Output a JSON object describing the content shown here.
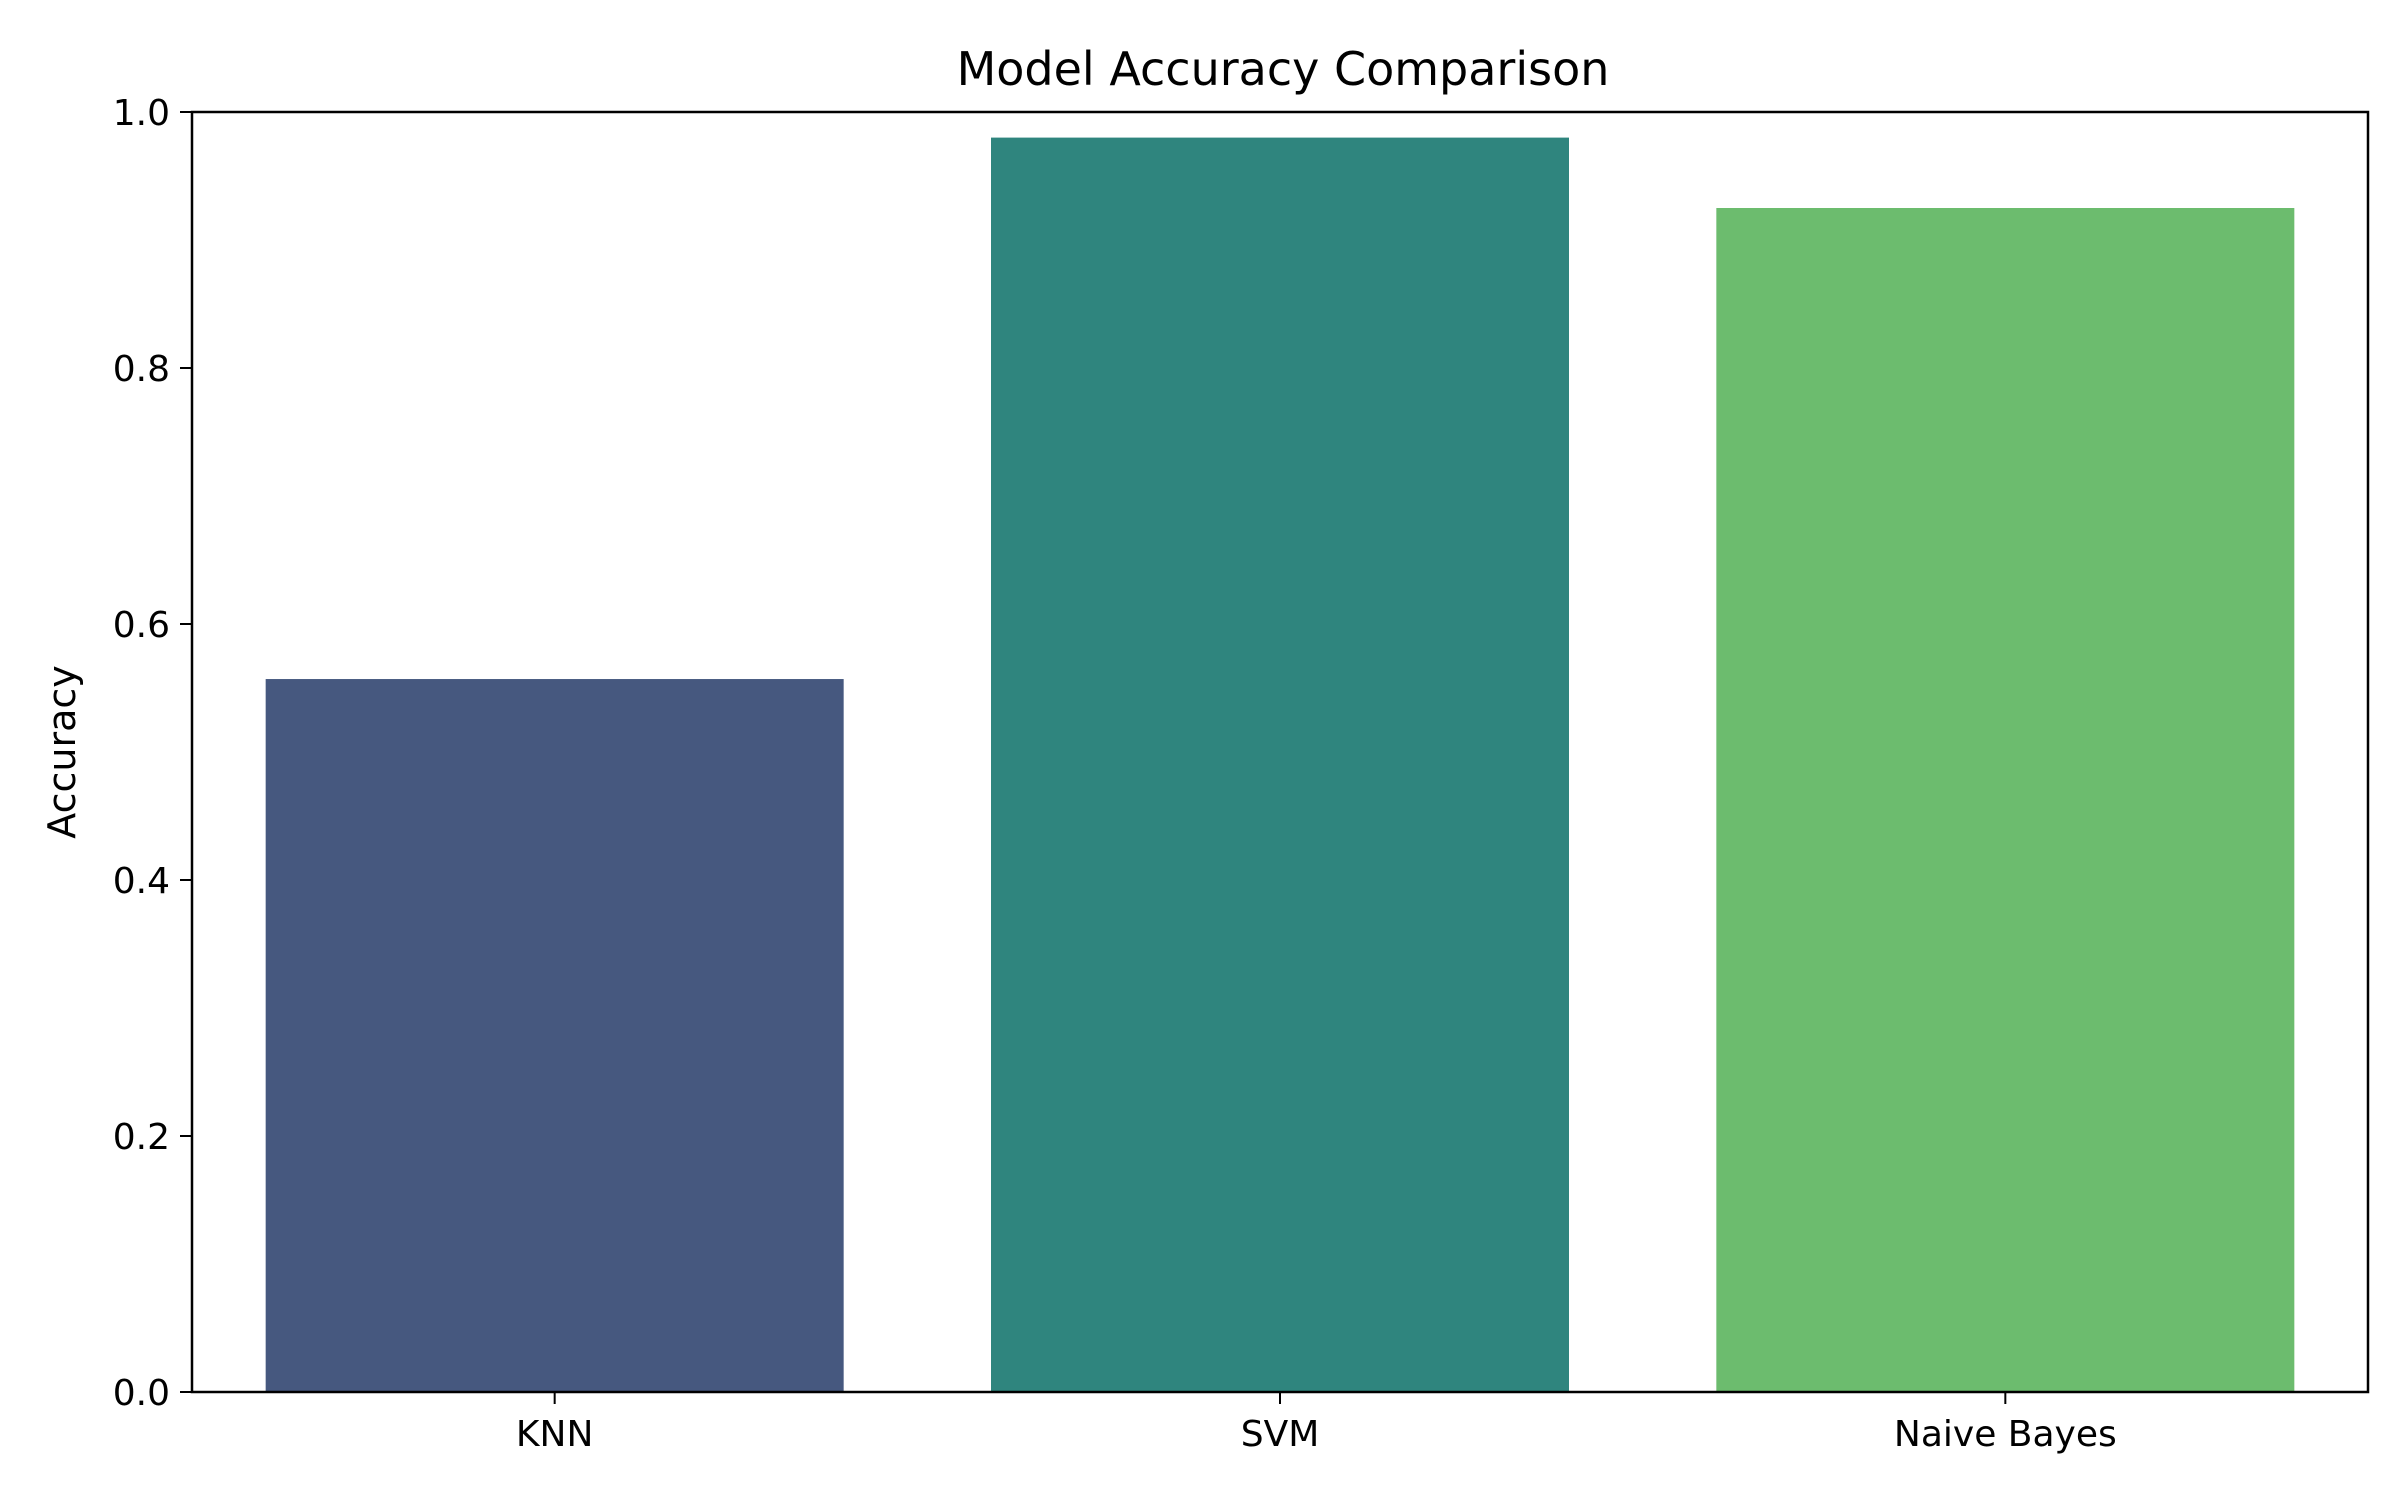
{
  "chart_data": {
    "type": "bar",
    "title": "Model Accuracy Comparison",
    "xlabel": "",
    "ylabel": "Accuracy",
    "categories": [
      "KNN",
      "SVM",
      "Naive Bayes"
    ],
    "values": [
      0.557,
      0.98,
      0.925
    ],
    "colors": [
      "#46587f",
      "#2f857e",
      "#6cbc6e"
    ],
    "ylim": [
      0,
      1.0
    ],
    "yticks": [
      0.0,
      0.2,
      0.4,
      0.6,
      0.8,
      1.0
    ],
    "ytick_labels": [
      "0.0",
      "0.2",
      "0.4",
      "0.6",
      "0.8",
      "1.0"
    ],
    "grid": false,
    "legend": "none"
  }
}
